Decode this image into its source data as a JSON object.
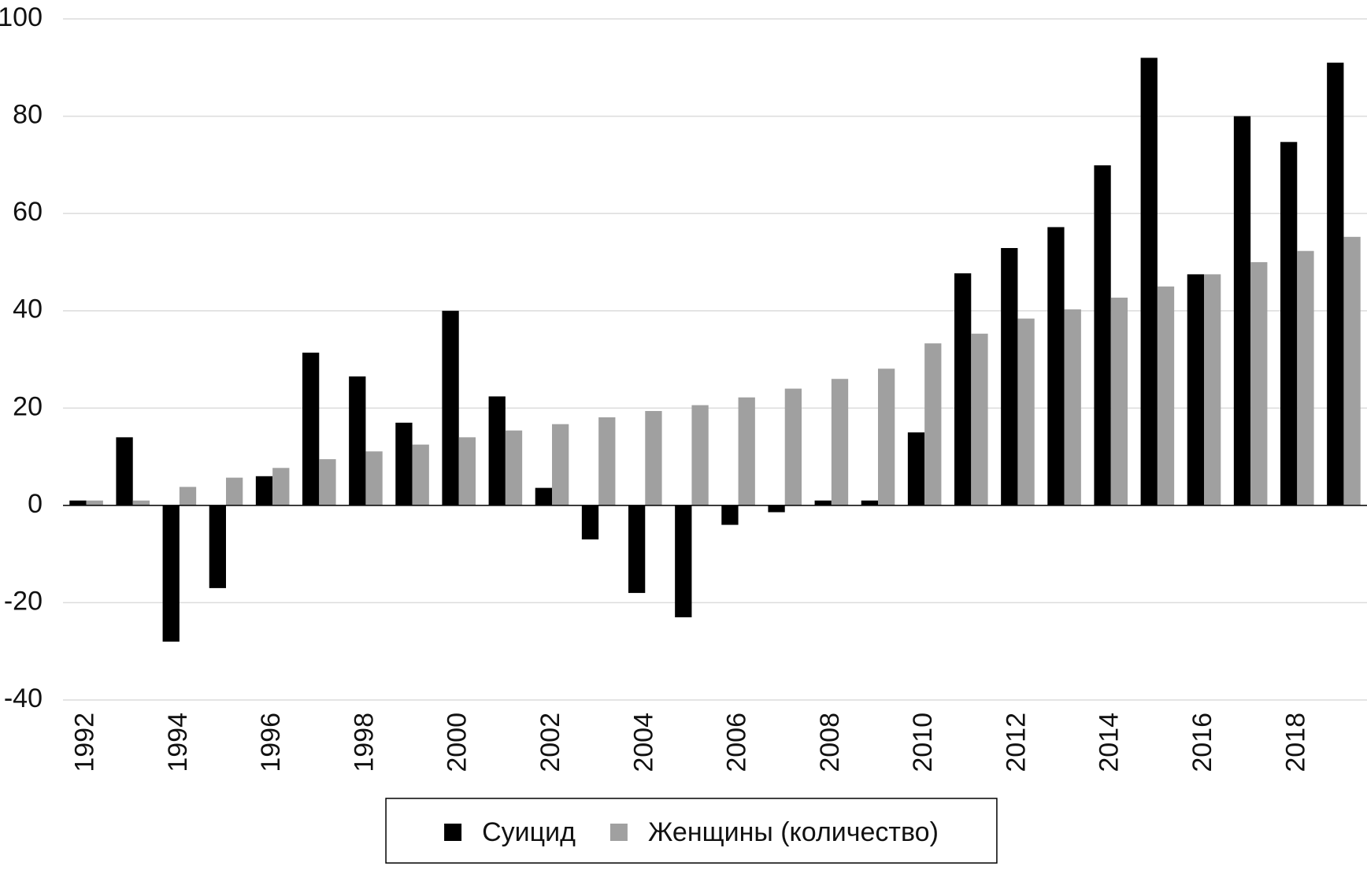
{
  "chart_data": {
    "type": "bar",
    "categories": [
      "1992",
      null,
      "1994",
      null,
      "1996",
      null,
      "1998",
      null,
      "2000",
      null,
      "2002",
      null,
      "2004",
      null,
      "2006",
      null,
      "2008",
      null,
      "2010",
      null,
      "2012",
      null,
      "2014",
      null,
      "2016",
      null,
      "2018",
      null
    ],
    "series": [
      {
        "name": "Суицид",
        "color": "#000000",
        "values": [
          1,
          14,
          -28,
          -17,
          6,
          31.4,
          26.5,
          17,
          40,
          22.4,
          3.6,
          -7,
          -18,
          -23,
          -4,
          -1.4,
          1,
          1,
          15,
          47.7,
          52.9,
          57.2,
          69.9,
          92,
          47.5,
          80,
          74.7,
          91
        ]
      },
      {
        "name": "Женщины (количество)",
        "color": "#a0a0a0",
        "values": [
          1,
          1,
          3.8,
          5.7,
          7.7,
          9.5,
          11.1,
          12.5,
          14,
          15.4,
          16.7,
          18.1,
          19.4,
          20.6,
          22.2,
          24,
          26,
          28.1,
          33.3,
          35.3,
          38.4,
          40.3,
          42.7,
          45,
          47.5,
          50,
          52.3,
          55.2
        ]
      }
    ],
    "ylim": [
      -40,
      100
    ],
    "yticks": [
      -40,
      -20,
      0,
      20,
      40,
      60,
      80,
      100
    ],
    "grid": true,
    "legend": "bottom"
  }
}
